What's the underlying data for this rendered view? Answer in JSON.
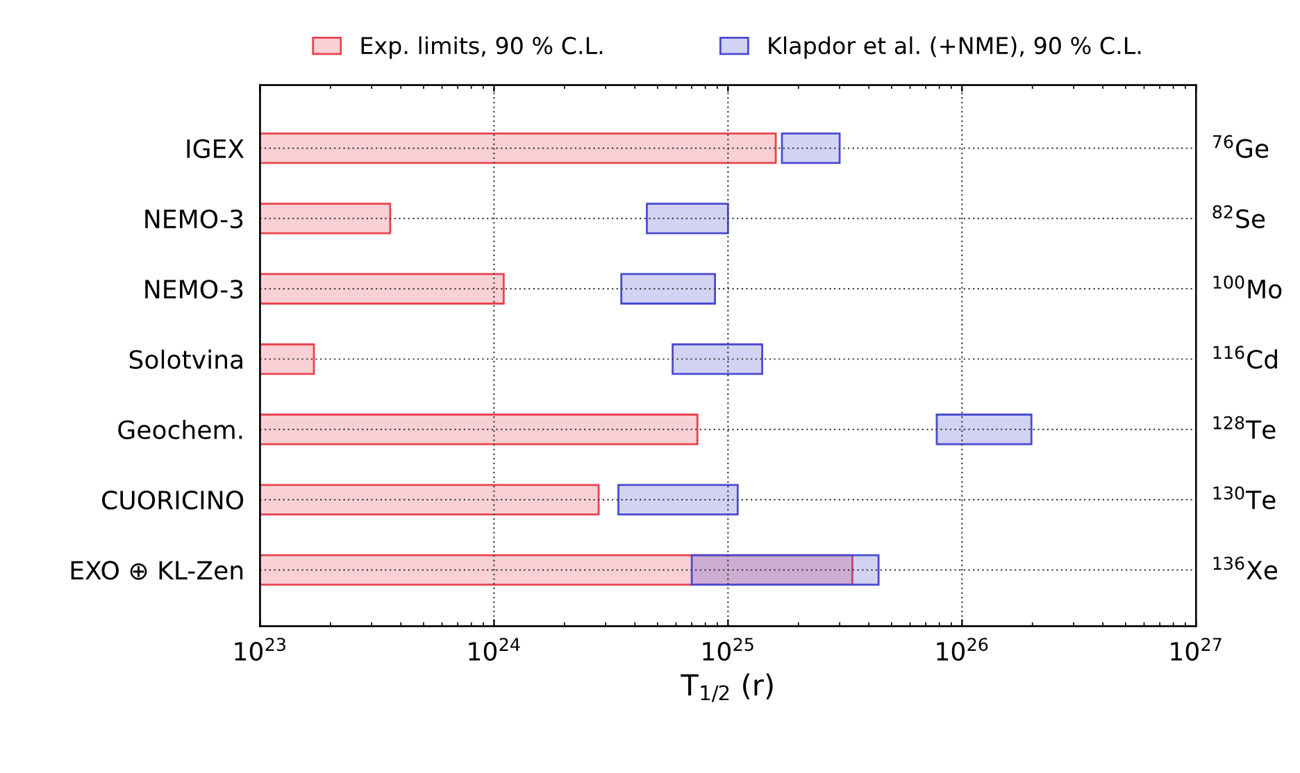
{
  "chart_data": {
    "type": "bar",
    "orientation": "horizontal",
    "xlabel": "T$_{1/2}$ (r)",
    "categories": [
      "IGEX",
      "NEMO-3",
      "NEMO-3",
      "Solotvina",
      "Geochem.",
      "CUORICINO",
      "EXO ⊕ KL-Zen"
    ],
    "y2_categories": [
      "$^{76}$Ge",
      "$^{82}$Se",
      "$^{100}$Mo",
      "$^{116}$Cd",
      "$^{128}$Te",
      "$^{130}$Te",
      "$^{136}$Xe"
    ],
    "series": [
      {
        "name": "Exp. limits, 90 % C.L.",
        "color": "#e8424f",
        "values": [
          1.6e+25,
          3.6e+23,
          1.1e+24,
          1.7e+23,
          7.4e+24,
          2.8e+24,
          3.4e+25
        ]
      },
      {
        "name": "Klapdor et al. (+NME), 90 % C.L.",
        "color": "#4a4ad0",
        "base": [
          1.7e+25,
          4.5e+24,
          3.5e+24,
          5.8e+24,
          7.8e+25,
          3.4e+24,
          7e+24
        ],
        "values": [
          1.3e+25,
          5.5e+24,
          5.3e+24,
          8.2e+24,
          1.2e+26,
          7.6e+24,
          3.7e+25
        ]
      }
    ],
    "log": "x",
    "xlim": [
      1e+23,
      1e+27
    ],
    "xticks": [
      {
        "value": 1e+23,
        "label": "10$^{23}$"
      },
      {
        "value": 1e+24,
        "label": "10$^{24}$"
      },
      {
        "value": 1e+25,
        "label": "10$^{25}$"
      },
      {
        "value": 1e+26,
        "label": "10$^{26}$"
      },
      {
        "value": 1e+27,
        "label": "10$^{27}$"
      }
    ],
    "grid": true,
    "legend": "top"
  }
}
